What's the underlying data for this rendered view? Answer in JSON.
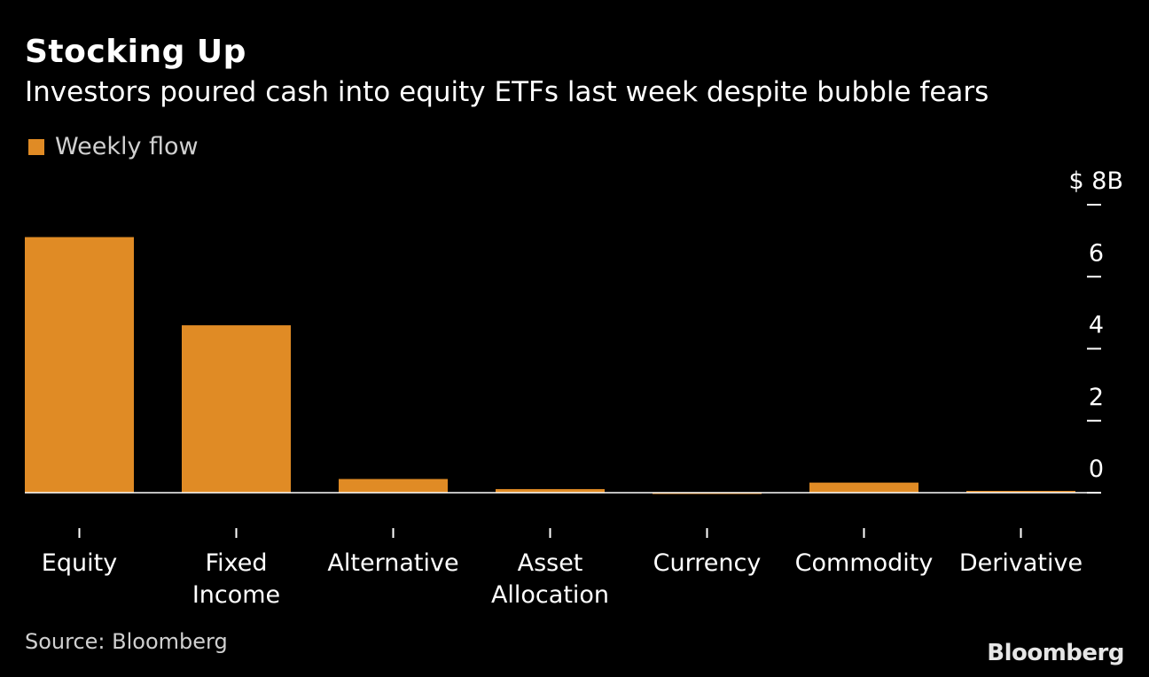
{
  "colors": {
    "background": "#000000",
    "bar": "#E08B25",
    "text": "#ffffff",
    "muted_text": "#d0d0d0",
    "axis": "#ffffff"
  },
  "title": "Stocking Up",
  "subtitle": "Investors poured cash into equity ETFs last week despite bubble fears",
  "source": "Source: Bloomberg",
  "brand": "Bloomberg",
  "chart_data": {
    "type": "bar",
    "categories": [
      [
        "Equity"
      ],
      [
        "Fixed",
        "Income"
      ],
      [
        "Alternative"
      ],
      [
        "Asset",
        "Allocation"
      ],
      [
        "Currency"
      ],
      [
        "Commodity"
      ],
      [
        "Derivative"
      ]
    ],
    "series": [
      {
        "name": "Weekly flow",
        "values": [
          7.1,
          4.65,
          0.38,
          0.1,
          -0.03,
          0.28,
          0.05
        ]
      }
    ],
    "y_ticks": [
      "$ 8B",
      "6",
      "4",
      "2",
      "0"
    ],
    "y_tick_values": [
      8,
      6,
      4,
      2,
      0
    ],
    "ylim": [
      0,
      8
    ],
    "y_axis_side": "right",
    "grid": false,
    "legend_position": "top-left"
  }
}
